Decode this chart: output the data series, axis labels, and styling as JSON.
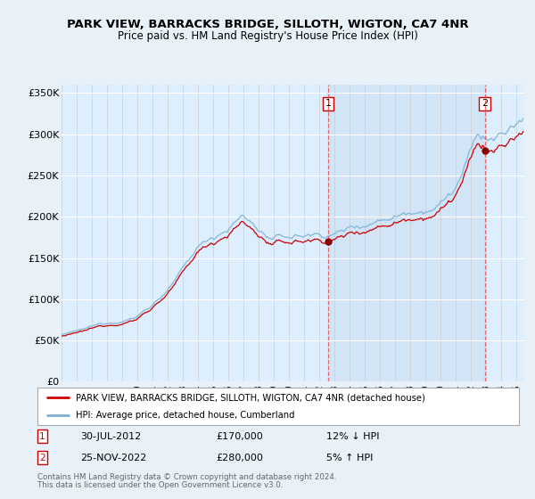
{
  "title": "PARK VIEW, BARRACKS BRIDGE, SILLOTH, WIGTON, CA7 4NR",
  "subtitle": "Price paid vs. HM Land Registry's House Price Index (HPI)",
  "background_color": "#e8f0f8",
  "plot_bg_color": "#dce9f5",
  "hpi_color": "#7ab0d4",
  "property_color": "#cc0000",
  "ylim": [
    0,
    360000
  ],
  "yticks": [
    0,
    50000,
    100000,
    150000,
    200000,
    250000,
    300000,
    350000
  ],
  "ytick_labels": [
    "£0",
    "£50K",
    "£100K",
    "£150K",
    "£200K",
    "£250K",
    "£300K",
    "£350K"
  ],
  "sale1_year": 2012.58,
  "sale1_price": 170000,
  "sale2_year": 2022.9,
  "sale2_price": 280000,
  "legend_line1": "PARK VIEW, BARRACKS BRIDGE, SILLOTH, WIGTON, CA7 4NR (detached house)",
  "legend_line2": "HPI: Average price, detached house, Cumberland",
  "footnote_line1": "Contains HM Land Registry data © Crown copyright and database right 2024.",
  "footnote_line2": "This data is licensed under the Open Government Licence v3.0.",
  "annotation1_date": "30-JUL-2012",
  "annotation1_price": "£170,000",
  "annotation1_hpi": "12% ↓ HPI",
  "annotation2_date": "25-NOV-2022",
  "annotation2_price": "£280,000",
  "annotation2_hpi": "5% ↑ HPI",
  "xstart": 1995,
  "xend": 2025
}
